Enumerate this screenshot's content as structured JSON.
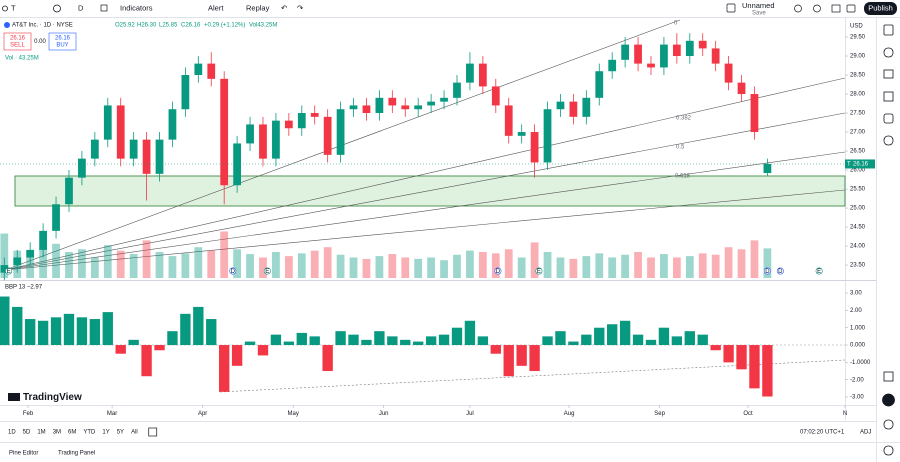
{
  "toolbar": {
    "symbol": "T",
    "interval": "D",
    "indicators": "Indicators",
    "alert": "Alert",
    "replay": "Replay",
    "layout_name": "Unnamed",
    "save": "Save",
    "publish": "Publish"
  },
  "legend": {
    "title": "AT&T Inc. · 1D · NYSE",
    "open": "O25.92",
    "high": "H26.30",
    "low": "L25.85",
    "close": "C26.16",
    "change": "+0.29 (+1.12%)",
    "volume": "Vol43.25M",
    "sell_price": "26.16",
    "sell": "SELL",
    "spread": "0.00",
    "buy_price": "26.16",
    "buy": "BUY",
    "volume_line": "Vol · 43.25M",
    "indicator": "BBP 13 −2.97"
  },
  "drawings": {
    "fib_0": "0",
    "fib_382": "0.382",
    "fib_5": "0.5",
    "fib_618": "0.618"
  },
  "price_axis": {
    "currency": "USD",
    "last_symbol": "T",
    "last_price": "26.16"
  },
  "chart_data": [
    {
      "type": "candlestick",
      "up_color": "#089981",
      "down_color": "#f23645",
      "xlim": [
        0,
        196
      ],
      "ylim": [
        23.16,
        30.0
      ],
      "yticks": [
        {
          "value": 23.5,
          "label": "23.50"
        },
        {
          "value": 24,
          "label": "24.00"
        },
        {
          "value": 24.5,
          "label": "24.50"
        },
        {
          "value": 25,
          "label": "25.00"
        },
        {
          "value": 25.5,
          "label": "25.50"
        },
        {
          "value": 26,
          "label": "26.00"
        },
        {
          "value": 26.5,
          "label": "26.50"
        },
        {
          "value": 27,
          "label": "27.00"
        },
        {
          "value": 27.5,
          "label": "27.50"
        },
        {
          "value": 28,
          "label": "28.00"
        },
        {
          "value": 28.5,
          "label": "28.50"
        },
        {
          "value": 29,
          "label": "29.00"
        },
        {
          "value": 29.5,
          "label": "29.50"
        }
      ],
      "x": [
        1,
        4,
        7,
        10,
        13,
        16,
        19,
        22,
        25,
        28,
        31,
        34,
        37,
        40,
        43,
        46,
        49,
        52,
        55,
        58,
        61,
        64,
        67,
        70,
        73,
        76,
        79,
        82,
        85,
        88,
        91,
        94,
        97,
        100,
        103,
        106,
        109,
        112,
        115,
        118,
        121,
        124,
        127,
        130,
        133,
        136,
        139,
        142,
        145,
        148,
        151,
        154,
        157,
        160,
        163,
        166,
        169,
        172,
        175,
        178
      ],
      "open": [
        23.3,
        23.5,
        23.7,
        23.9,
        24.4,
        25.1,
        25.8,
        26.3,
        26.8,
        27.7,
        26.3,
        26.8,
        25.9,
        26.8,
        27.6,
        28.5,
        28.8,
        28.4,
        25.6,
        26.7,
        27.2,
        26.3,
        27.3,
        27.1,
        27.5,
        27.4,
        26.4,
        27.6,
        27.7,
        27.5,
        27.9,
        27.7,
        27.6,
        27.7,
        27.8,
        27.9,
        28.3,
        28.8,
        28.2,
        27.7,
        26.9,
        27.0,
        26.2,
        27.6,
        27.8,
        27.4,
        27.9,
        28.6,
        28.9,
        29.3,
        28.8,
        28.7,
        29.3,
        29.0,
        29.4,
        29.2,
        28.8,
        28.3,
        28.0,
        25.92
      ],
      "high": [
        23.7,
        23.9,
        24.1,
        24.6,
        25.3,
        26.0,
        26.5,
        27.0,
        27.9,
        27.9,
        27.0,
        27.0,
        27.0,
        27.8,
        28.7,
        29.0,
        29.1,
        28.6,
        26.9,
        27.4,
        27.4,
        27.5,
        27.5,
        27.7,
        27.7,
        27.6,
        27.8,
        27.9,
        27.9,
        28.1,
        28.1,
        27.9,
        27.9,
        28.0,
        28.1,
        28.5,
        29.1,
        29.0,
        28.4,
        27.9,
        27.2,
        27.2,
        27.8,
        28.0,
        28.0,
        28.1,
        28.8,
        29.1,
        29.5,
        29.5,
        29.0,
        29.5,
        29.6,
        29.6,
        29.6,
        29.4,
        29.0,
        28.5,
        28.2,
        26.3
      ],
      "low": [
        23.1,
        23.3,
        23.5,
        23.7,
        24.2,
        24.9,
        25.6,
        26.1,
        26.6,
        26.1,
        26.1,
        25.2,
        25.7,
        26.6,
        27.4,
        28.3,
        28.2,
        25.1,
        25.4,
        26.5,
        26.1,
        26.1,
        26.9,
        26.9,
        27.2,
        26.2,
        26.2,
        27.4,
        27.3,
        27.3,
        27.5,
        27.4,
        27.4,
        27.5,
        27.6,
        27.7,
        28.1,
        28.0,
        27.5,
        26.7,
        26.7,
        25.8,
        26.0,
        27.4,
        27.2,
        27.2,
        27.7,
        28.4,
        28.7,
        28.6,
        28.5,
        28.5,
        28.8,
        28.8,
        29.0,
        28.6,
        28.1,
        27.8,
        26.8,
        25.85
      ],
      "close": [
        23.5,
        23.7,
        23.9,
        24.4,
        25.1,
        25.8,
        26.3,
        26.8,
        27.7,
        26.3,
        26.8,
        25.9,
        26.8,
        27.6,
        28.5,
        28.8,
        28.4,
        25.6,
        26.7,
        27.2,
        26.3,
        27.3,
        27.1,
        27.5,
        27.4,
        26.4,
        27.6,
        27.7,
        27.5,
        27.9,
        27.7,
        27.6,
        27.7,
        27.8,
        27.9,
        28.3,
        28.8,
        28.2,
        27.7,
        26.9,
        27.0,
        26.2,
        27.6,
        27.8,
        27.4,
        27.9,
        28.6,
        28.9,
        29.3,
        28.8,
        28.7,
        29.3,
        29.0,
        29.4,
        29.2,
        28.8,
        28.3,
        28.0,
        27.0,
        26.16
      ],
      "volume_lim": [
        0,
        380
      ],
      "volume_values": [
        65,
        40,
        35,
        45,
        50,
        38,
        42,
        30,
        48,
        40,
        35,
        55,
        38,
        32,
        36,
        45,
        40,
        68,
        42,
        35,
        30,
        38,
        32,
        36,
        40,
        45,
        34,
        30,
        28,
        32,
        35,
        30,
        28,
        30,
        26,
        34,
        40,
        38,
        36,
        42,
        30,
        52,
        38,
        30,
        28,
        32,
        36,
        30,
        34,
        38,
        30,
        35,
        30,
        32,
        36,
        34,
        45,
        42,
        55,
        43.25
      ],
      "xticks": [
        {
          "value": 6.5,
          "label": "Feb"
        },
        {
          "value": 26,
          "label": "Mar"
        },
        {
          "value": 47,
          "label": "Apr"
        },
        {
          "value": 68,
          "label": "May"
        },
        {
          "value": 89,
          "label": "Jun"
        },
        {
          "value": 109,
          "label": "Jul"
        },
        {
          "value": 132,
          "label": "Aug"
        },
        {
          "value": 153,
          "label": "Sep"
        },
        {
          "value": 173.5,
          "label": "Oct"
        },
        {
          "value": 196,
          "label": "N"
        }
      ],
      "events": [
        {
          "x": 2,
          "label": "E"
        },
        {
          "x": 54,
          "label": "D"
        },
        {
          "x": 62,
          "label": "E"
        },
        {
          "x": 115.5,
          "label": "D"
        },
        {
          "x": 125,
          "label": "E"
        },
        {
          "x": 178,
          "label": "D"
        },
        {
          "x": 181,
          "label": "D"
        },
        {
          "x": 190,
          "label": "E"
        }
      ]
    },
    {
      "type": "bar",
      "name": "BBP",
      "up_color": "#089981",
      "down_color": "#f23645",
      "xlim": [
        0,
        196
      ],
      "ylim": [
        -3.46,
        3.58
      ],
      "yticks": [
        {
          "value": 3,
          "label": "3.00"
        },
        {
          "value": 2,
          "label": "2.00"
        },
        {
          "value": 1,
          "label": "1.000"
        },
        {
          "value": 0,
          "label": "0.000"
        },
        {
          "value": -1,
          "label": "-1.0000"
        },
        {
          "value": -2,
          "label": "-2.00"
        },
        {
          "value": -3,
          "label": "-3.00"
        }
      ],
      "x": [
        1,
        4,
        7,
        10,
        13,
        16,
        19,
        22,
        25,
        28,
        31,
        34,
        37,
        40,
        43,
        46,
        49,
        52,
        55,
        58,
        61,
        64,
        67,
        70,
        73,
        76,
        79,
        82,
        85,
        88,
        91,
        94,
        97,
        100,
        103,
        106,
        109,
        112,
        115,
        118,
        121,
        124,
        127,
        130,
        133,
        136,
        139,
        142,
        145,
        148,
        151,
        154,
        157,
        160,
        163,
        166,
        169,
        172,
        175,
        178
      ],
      "values": [
        2.8,
        2.2,
        1.5,
        1.4,
        1.6,
        1.8,
        1.6,
        1.5,
        1.9,
        -0.5,
        0.3,
        -1.8,
        -0.3,
        0.8,
        1.8,
        2.2,
        1.5,
        -2.7,
        -1.2,
        0.2,
        -0.6,
        0.6,
        0.2,
        0.7,
        0.5,
        -1.5,
        0.8,
        0.6,
        0.3,
        0.8,
        0.5,
        0.3,
        0.2,
        0.5,
        0.6,
        1.0,
        1.4,
        0.5,
        -0.5,
        -1.8,
        -1.2,
        -1.5,
        0.5,
        0.8,
        0.2,
        0.6,
        1.0,
        1.2,
        1.4,
        0.6,
        0.3,
        1.0,
        0.5,
        0.8,
        0.6,
        -0.3,
        -1.0,
        -1.4,
        -2.5,
        -2.97
      ]
    }
  ],
  "branding": "TradingView",
  "periods": [
    "1D",
    "5D",
    "1M",
    "3M",
    "6M",
    "YTD",
    "1Y",
    "5Y",
    "All"
  ],
  "clock": "07:02:20 UTC+1",
  "adj": "ADJ",
  "footer": {
    "pine_editor": "Pine Editor",
    "trading_panel": "Trading Panel"
  }
}
